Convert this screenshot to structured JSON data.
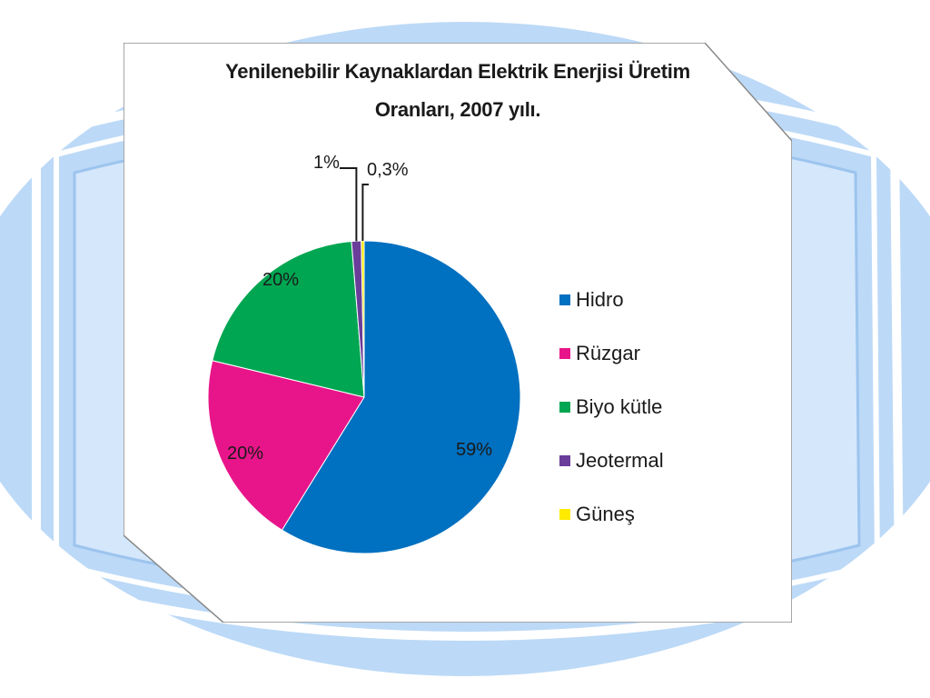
{
  "slide": {
    "background_color": "#bcd9f7",
    "frame_color": "#9cc4ee"
  },
  "chart_data": {
    "type": "pie",
    "title": "Yenilenebilir Kaynaklardan Elektrik Enerjisi Üretim Oranları, 2007 yılı.",
    "title_lines": [
      "Yenilenebilir Kaynaklardan Elektrik Enerjisi Üretim",
      "Oranları, 2007 yılı."
    ],
    "legend_position": "right",
    "slices": [
      {
        "name": "Hidro",
        "value": 59,
        "label": "59%",
        "color": "#0070c0"
      },
      {
        "name": "Rüzgar",
        "value": 20,
        "label": "20%",
        "color": "#e8158a"
      },
      {
        "name": "Biyo kütle",
        "value": 20,
        "label": "20%",
        "color": "#00a651"
      },
      {
        "name": "Jeotermal",
        "value": 1,
        "label": "1%",
        "color": "#6a3d9a"
      },
      {
        "name": "Güneş",
        "value": 0.3,
        "label": "0,3%",
        "color": "#ffeb00"
      }
    ]
  }
}
